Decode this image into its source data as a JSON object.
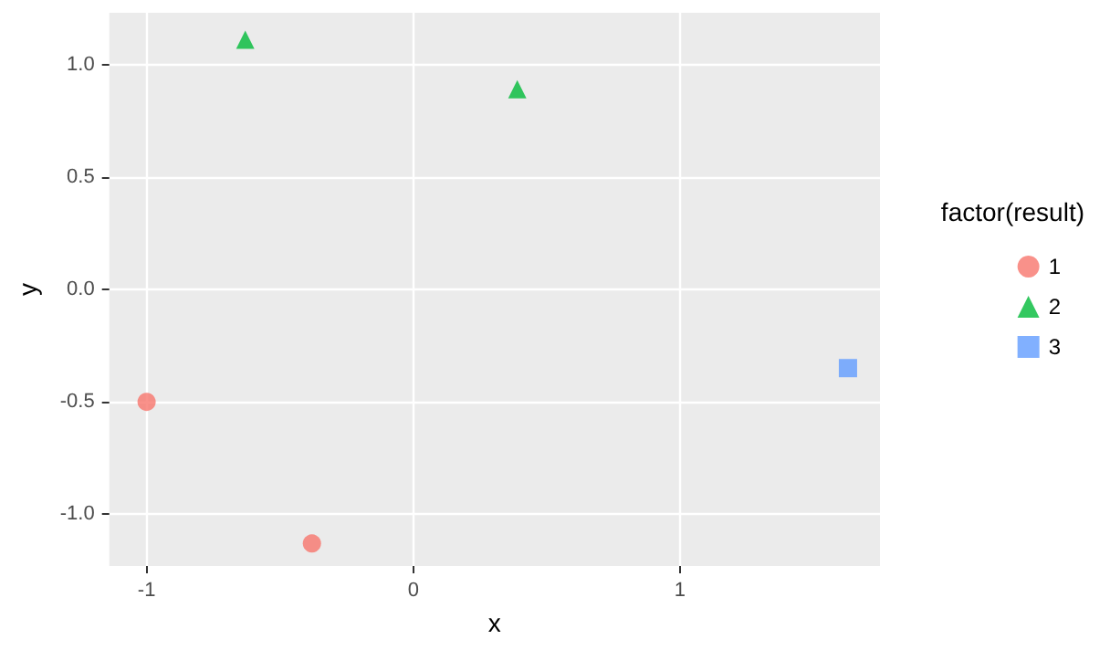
{
  "chart_data": {
    "type": "scatter",
    "xlabel": "x",
    "ylabel": "y",
    "legend_title": "factor(result)",
    "series": [
      {
        "name": "1",
        "color": "#f8766d",
        "marker": "circle",
        "x": [
          -1.0,
          -0.38
        ],
        "values": [
          -0.5,
          -1.13
        ]
      },
      {
        "name": "2",
        "color": "#00ba38",
        "marker": "triangle",
        "x": [
          -0.63,
          0.39
        ],
        "values": [
          1.11,
          0.89
        ]
      },
      {
        "name": "3",
        "color": "#619cff",
        "marker": "square",
        "x": [
          1.63
        ],
        "values": [
          -0.35
        ]
      }
    ],
    "xlim": [
      -1.14,
      1.75
    ],
    "xticks": [
      -1,
      0,
      1
    ],
    "ylim": [
      -1.23,
      1.23
    ],
    "yticks": [
      {
        "value": -1,
        "label": "-1.0"
      },
      {
        "value": -0.5,
        "label": "-0.5"
      },
      {
        "value": 0,
        "label": "0.0"
      },
      {
        "value": 0.5,
        "label": "0.5"
      },
      {
        "value": 1,
        "label": "1.0"
      }
    ],
    "grid": true,
    "legend": "right"
  }
}
